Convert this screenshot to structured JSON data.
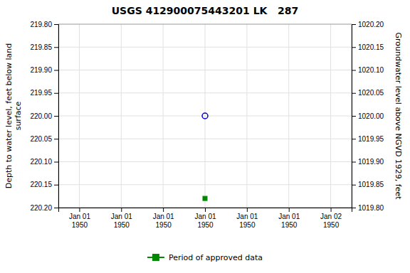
{
  "chart_data": {
    "type": "scatter",
    "title": "USGS 412900075443201 LK   287",
    "categories": [
      "Jan 01\n1950",
      "Jan 01\n1950",
      "Jan 01\n1950",
      "Jan 01\n1950",
      "Jan 01\n1950",
      "Jan 01\n1950",
      "Jan 02\n1950"
    ],
    "ylabel": "Depth to water level, feet below land\nsurface",
    "y2label": "Groundwater level above NGVD 1929, feet",
    "ylim": [
      220.2,
      219.8
    ],
    "yticks": [
      {
        "value": 219.8,
        "label": "219.80"
      },
      {
        "value": 219.85,
        "label": "219.85"
      },
      {
        "value": 219.9,
        "label": "219.90"
      },
      {
        "value": 219.95,
        "label": "219.95"
      },
      {
        "value": 220.0,
        "label": "220.00"
      },
      {
        "value": 220.05,
        "label": "220.05"
      },
      {
        "value": 220.1,
        "label": "220.10"
      },
      {
        "value": 220.15,
        "label": "220.15"
      },
      {
        "value": 220.2,
        "label": "220.20"
      }
    ],
    "y2lim": [
      1019.8,
      1020.2
    ],
    "y2ticks": [
      {
        "value": 1020.2,
        "label": "1020.20"
      },
      {
        "value": 1020.15,
        "label": "1020.15"
      },
      {
        "value": 1020.1,
        "label": "1020.10"
      },
      {
        "value": 1020.05,
        "label": "1020.05"
      },
      {
        "value": 1020.0,
        "label": "1020.00"
      },
      {
        "value": 1019.95,
        "label": "1019.95"
      },
      {
        "value": 1019.9,
        "label": "1019.90"
      },
      {
        "value": 1019.85,
        "label": "1019.85"
      },
      {
        "value": 1019.8,
        "label": "1019.80"
      }
    ],
    "series": [
      {
        "values": [
          null,
          null,
          null,
          220.0,
          null,
          null,
          null
        ],
        "color": "#0000cc",
        "marker": "circle"
      },
      {
        "name": "Period of approved data",
        "values": [
          null,
          null,
          null,
          220.18,
          null,
          null,
          null
        ],
        "color": "#008800",
        "marker": "square"
      }
    ],
    "grid": true,
    "legend": "bottom"
  }
}
